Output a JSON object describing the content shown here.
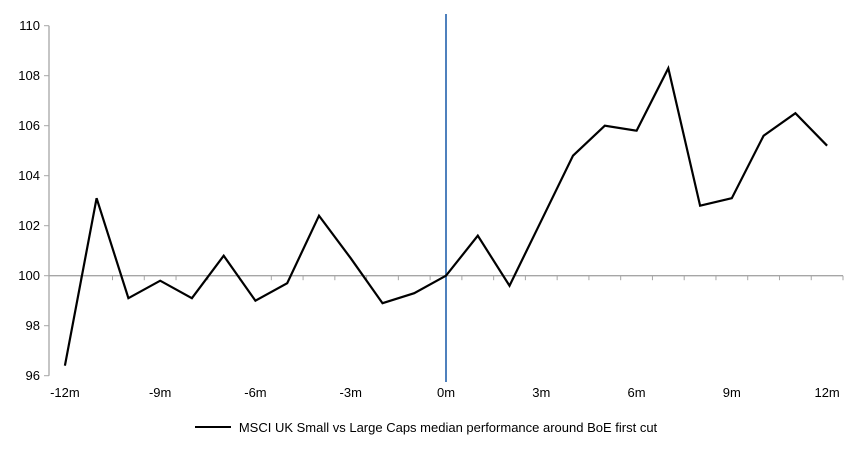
{
  "chart_data": {
    "type": "line",
    "title": "",
    "xlabel": "",
    "ylabel": "",
    "legend": "MSCI UK Small vs Large Caps median performance around BoE first cut",
    "legend_position": "bottom-center",
    "grid": false,
    "x": [
      -12,
      -11,
      -10,
      -9,
      -8,
      -7,
      -6,
      -5,
      -4,
      -3,
      -2,
      -1,
      0,
      1,
      2,
      3,
      4,
      5,
      6,
      7,
      8,
      9,
      10,
      11,
      12
    ],
    "series": [
      {
        "name": "MSCI UK Small vs Large Caps median performance around BoE first cut",
        "values": [
          96.4,
          103.1,
          99.1,
          99.8,
          99.1,
          100.8,
          99.0,
          99.7,
          102.4,
          100.7,
          98.9,
          99.3,
          100.0,
          101.6,
          99.6,
          102.2,
          104.8,
          106.0,
          105.8,
          108.3,
          102.8,
          103.1,
          105.6,
          106.5,
          105.2
        ]
      }
    ],
    "x_tick_positions": [
      -12,
      -9,
      -6,
      -3,
      0,
      3,
      6,
      9,
      12
    ],
    "x_tick_labels": [
      "-12m",
      "-9m",
      "-6m",
      "-3m",
      "0m",
      "3m",
      "6m",
      "9m",
      "12m"
    ],
    "y_ticks": [
      96,
      98,
      100,
      102,
      104,
      106,
      108,
      110
    ],
    "ylim": [
      96,
      110
    ],
    "baseline_value": 100,
    "event_line_x": 0,
    "colors": {
      "series": "#000000",
      "baseline": "#a6a6a6",
      "event_line": "#4f81bd",
      "axis": "#a6a6a6",
      "text": "#000000"
    }
  }
}
